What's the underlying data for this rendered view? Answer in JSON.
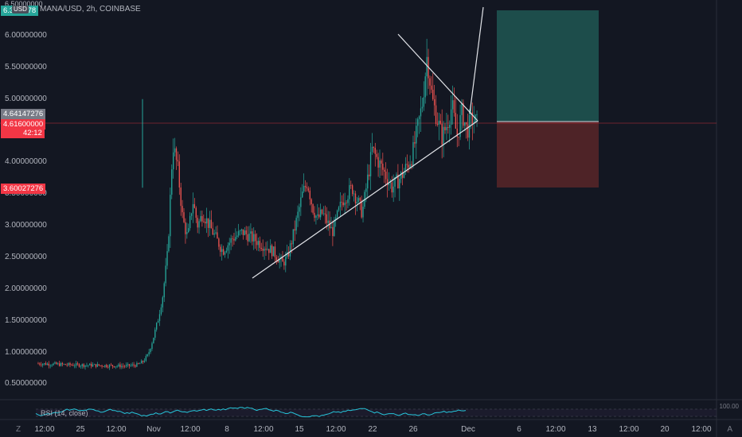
{
  "header": {
    "symbol_text": "MANA/USD, 2h, COINBASE",
    "currency_badge": "USD",
    "top_cut_label": "6.50000000",
    "top_value_tag": "6.3… 278"
  },
  "price_axis": {
    "ticks": [
      "6.00000000",
      "5.50000000",
      "5.00000000",
      "4.00000000",
      "3.50000000",
      "3.00000000",
      "2.50000000",
      "2.00000000",
      "1.50000000",
      "1.00000000",
      "0.50000000"
    ],
    "tick_values": [
      6.0,
      5.5,
      5.0,
      4.0,
      3.5,
      3.0,
      2.5,
      2.0,
      1.5,
      1.0,
      0.5
    ]
  },
  "tags": {
    "tag1": {
      "text": "4.64147276",
      "color": "#787b86"
    },
    "tag2_price": {
      "text": "4.61600000",
      "color": "#f23645"
    },
    "tag2_countdown": {
      "text": "42:12"
    },
    "tag3": {
      "text": "3.60027276",
      "color": "#f23645"
    }
  },
  "time_axis": {
    "tz_icon": "Z",
    "labels": [
      "12:00",
      "25",
      "12:00",
      "Nov",
      "12:00",
      "8",
      "12:00",
      "15",
      "12:00",
      "22",
      "26",
      "Dec",
      "6",
      "12:00",
      "13",
      "12:00",
      "20",
      "12:00"
    ],
    "auto_button": "A"
  },
  "rsi": {
    "label": "RSI (14, close)",
    "upper_label": "100.00"
  },
  "colors": {
    "background": "#131722",
    "up": "#26a69a",
    "down": "#ef5350",
    "position_target": "#1d4d4b",
    "position_stop": "#4e2327",
    "trendline": "#e1e3e8",
    "price_line": "#f23645"
  },
  "icons": [
    "currency-badge",
    "timezone-icon",
    "auto-scale-icon"
  ],
  "chart_data": {
    "type": "candlestick",
    "title": "MANA/USD, 2h, COINBASE",
    "ylim": [
      0.4,
      6.5
    ],
    "price_axis_ticks": [
      0.5,
      1.0,
      1.5,
      2.0,
      2.5,
      3.0,
      3.5,
      4.0,
      5.0,
      5.5,
      6.0
    ],
    "last_price": 4.616,
    "position_tool": {
      "entry": 4.616,
      "target": 6.4,
      "stop": 3.60027276
    },
    "close_path": [
      [
        0,
        0.82
      ],
      [
        12,
        0.8
      ],
      [
        25,
        0.79
      ],
      [
        35,
        0.78
      ],
      [
        40,
        0.8
      ],
      [
        42,
        0.85
      ],
      [
        44,
        0.95
      ],
      [
        46,
        1.2
      ],
      [
        48,
        1.5
      ],
      [
        50,
        1.9
      ],
      [
        52,
        2.6
      ],
      [
        54,
        4.3
      ],
      [
        56,
        3.9
      ],
      [
        58,
        3.1
      ],
      [
        60,
        2.8
      ],
      [
        62,
        3.4
      ],
      [
        64,
        3.0
      ],
      [
        66,
        3.2
      ],
      [
        70,
        2.9
      ],
      [
        74,
        2.6
      ],
      [
        78,
        2.8
      ],
      [
        82,
        2.9
      ],
      [
        86,
        2.8
      ],
      [
        90,
        2.7
      ],
      [
        94,
        2.6
      ],
      [
        98,
        2.4
      ],
      [
        100,
        2.5
      ],
      [
        102,
        2.8
      ],
      [
        106,
        3.5
      ],
      [
        108,
        3.7
      ],
      [
        110,
        3.3
      ],
      [
        112,
        3.1
      ],
      [
        114,
        3.2
      ],
      [
        118,
        2.9
      ],
      [
        122,
        3.4
      ],
      [
        126,
        3.6
      ],
      [
        130,
        3.2
      ],
      [
        134,
        4.2
      ],
      [
        138,
        3.9
      ],
      [
        142,
        3.6
      ],
      [
        146,
        3.8
      ],
      [
        150,
        4.1
      ],
      [
        154,
        4.9
      ],
      [
        156,
        5.7
      ],
      [
        158,
        5.0
      ],
      [
        160,
        4.7
      ],
      [
        162,
        4.4
      ],
      [
        164,
        4.6
      ],
      [
        166,
        4.9
      ],
      [
        168,
        4.4
      ],
      [
        170,
        4.8
      ],
      [
        172,
        4.5
      ],
      [
        174,
        4.7
      ],
      [
        176,
        4.616
      ]
    ]
  }
}
